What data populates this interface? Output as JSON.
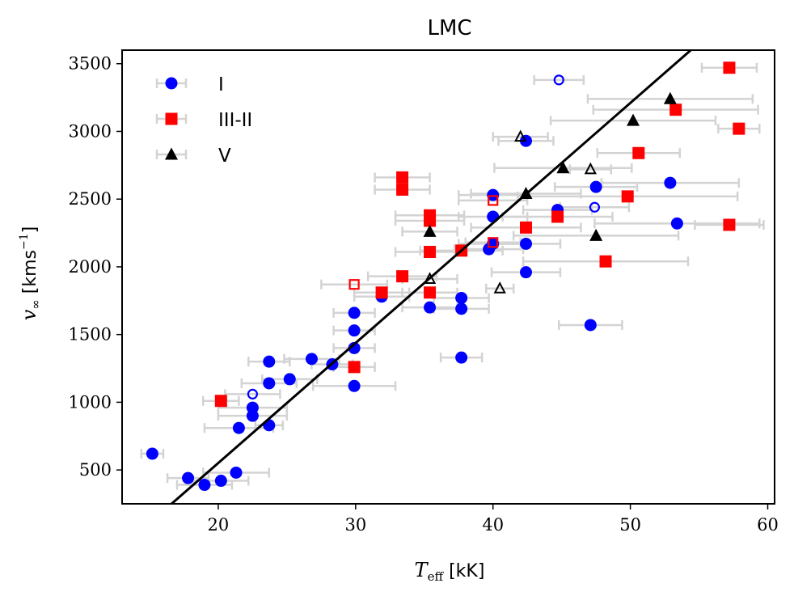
{
  "chart_data": {
    "type": "scatter",
    "title": "LMC",
    "xlabel_symbol": "T",
    "xlabel_sub": "eff",
    "xlabel_unit": " [kK]",
    "ylabel_symbol": "v",
    "ylabel_sub": "∞",
    "ylabel_unit_prefix": " [kms",
    "ylabel_unit_sup": "−1",
    "ylabel_unit_suffix": "]",
    "xlim": [
      13,
      60.5
    ],
    "ylim": [
      250,
      3600
    ],
    "xticks": [
      20,
      30,
      40,
      50,
      60
    ],
    "yticks": [
      500,
      1000,
      1500,
      2000,
      2500,
      3000,
      3500
    ],
    "grid": false,
    "legend_position": "top-left",
    "fit_line": {
      "x": [
        16.6,
        54.4
      ],
      "y": [
        250,
        3600
      ],
      "color": "#000000"
    },
    "series": [
      {
        "name": "I",
        "marker": "circle",
        "color": "#0000ff",
        "points": [
          {
            "x": 15.2,
            "y": 620,
            "xerr": 0.8
          },
          {
            "x": 17.8,
            "y": 440,
            "xerr": 1.5
          },
          {
            "x": 19.0,
            "y": 390,
            "xerr": 2.0
          },
          {
            "x": 20.2,
            "y": 420,
            "xerr": 2.0
          },
          {
            "x": 21.3,
            "y": 480,
            "xerr": 2.4
          },
          {
            "x": 21.5,
            "y": 810,
            "xerr": 2.5
          },
          {
            "x": 22.5,
            "y": 960,
            "xerr": 2.5
          },
          {
            "x": 22.5,
            "y": 900,
            "xerr": 2.5
          },
          {
            "x": 23.7,
            "y": 830,
            "xerr": 1.0
          },
          {
            "x": 23.7,
            "y": 1140,
            "xerr": 2.0
          },
          {
            "x": 23.7,
            "y": 1300,
            "xerr": 1.5
          },
          {
            "x": 25.2,
            "y": 1170,
            "xerr": 2.0
          },
          {
            "x": 26.8,
            "y": 1320,
            "xerr": 2.0
          },
          {
            "x": 28.3,
            "y": 1280,
            "xerr": 1.5
          },
          {
            "x": 29.9,
            "y": 1120,
            "xerr": 3.0
          },
          {
            "x": 29.9,
            "y": 1400,
            "xerr": 1.5
          },
          {
            "x": 29.9,
            "y": 1530,
            "xerr": 1.5
          },
          {
            "x": 29.9,
            "y": 1660,
            "xerr": 1.5
          },
          {
            "x": 31.9,
            "y": 1780,
            "xerr": 2.0
          },
          {
            "x": 35.4,
            "y": 1700,
            "xerr": 2.0
          },
          {
            "x": 37.7,
            "y": 1330,
            "xerr": 1.5
          },
          {
            "x": 37.7,
            "y": 1690,
            "xerr": 2.0
          },
          {
            "x": 37.7,
            "y": 1770,
            "xerr": 2.0
          },
          {
            "x": 39.7,
            "y": 2130,
            "xerr": 2.5
          },
          {
            "x": 40.0,
            "y": 2170,
            "xerr": 2.5
          },
          {
            "x": 40.0,
            "y": 2370,
            "xerr": 2.5
          },
          {
            "x": 40.0,
            "y": 2530,
            "xerr": 2.5
          },
          {
            "x": 42.4,
            "y": 1960,
            "xerr": 2.5
          },
          {
            "x": 42.4,
            "y": 2170,
            "xerr": 2.5
          },
          {
            "x": 42.4,
            "y": 2930,
            "xerr": 2.0
          },
          {
            "x": 44.7,
            "y": 2420,
            "xerr": 2.5
          },
          {
            "x": 47.1,
            "y": 1570,
            "xerr": 2.3
          },
          {
            "x": 47.5,
            "y": 2590,
            "xerr": 3.0
          },
          {
            "x": 52.9,
            "y": 2620,
            "xerr": 5.0
          },
          {
            "x": 53.4,
            "y": 2320,
            "xerr": 6.0
          }
        ]
      },
      {
        "name": "I",
        "marker": "circle-open",
        "color": "#0000ff",
        "legend": false,
        "points": [
          {
            "x": 22.5,
            "y": 1060,
            "xerr": 2.0
          },
          {
            "x": 44.8,
            "y": 3380,
            "xerr": 1.8
          },
          {
            "x": 47.4,
            "y": 2440,
            "xerr": 2.5
          }
        ]
      },
      {
        "name": "III-II",
        "marker": "square",
        "color": "#ff0000",
        "points": [
          {
            "x": 20.2,
            "y": 1010,
            "xerr": 1.3
          },
          {
            "x": 29.9,
            "y": 1260,
            "xerr": 1.5
          },
          {
            "x": 31.9,
            "y": 1810,
            "xerr": 2.0
          },
          {
            "x": 33.4,
            "y": 1930,
            "xerr": 2.5
          },
          {
            "x": 33.4,
            "y": 2570,
            "xerr": 2.0
          },
          {
            "x": 33.4,
            "y": 2660,
            "xerr": 2.0
          },
          {
            "x": 35.4,
            "y": 1810,
            "xerr": 2.0
          },
          {
            "x": 35.4,
            "y": 2110,
            "xerr": 2.5
          },
          {
            "x": 35.4,
            "y": 2340,
            "xerr": 2.5
          },
          {
            "x": 35.4,
            "y": 2380,
            "xerr": 2.5
          },
          {
            "x": 37.7,
            "y": 2120,
            "xerr": 3.0
          },
          {
            "x": 42.4,
            "y": 2290,
            "xerr": 4.0
          },
          {
            "x": 44.7,
            "y": 2370,
            "xerr": 4.0
          },
          {
            "x": 48.2,
            "y": 2040,
            "xerr": 6.0
          },
          {
            "x": 49.8,
            "y": 2520,
            "xerr": 8.0
          },
          {
            "x": 50.6,
            "y": 2840,
            "xerr": 3.0
          },
          {
            "x": 53.3,
            "y": 3160,
            "xerr": 6.0
          },
          {
            "x": 57.2,
            "y": 3470,
            "xerr": 2.0
          },
          {
            "x": 57.2,
            "y": 2310,
            "xerr": 2.5
          },
          {
            "x": 57.9,
            "y": 3020,
            "xerr": 1.5
          }
        ]
      },
      {
        "name": "III-II",
        "marker": "square-open",
        "color": "#ff0000",
        "legend": false,
        "points": [
          {
            "x": 29.9,
            "y": 1870,
            "xerr": 2.4
          },
          {
            "x": 40.0,
            "y": 2180,
            "xerr": 2.0
          },
          {
            "x": 40.0,
            "y": 2490,
            "xerr": 2.5
          }
        ]
      },
      {
        "name": "V",
        "marker": "triangle",
        "color": "#000000",
        "points": [
          {
            "x": 35.4,
            "y": 2260,
            "xerr": 2.0
          },
          {
            "x": 42.4,
            "y": 2540,
            "xerr": 4.0
          },
          {
            "x": 45.1,
            "y": 2730,
            "xerr": 5.0
          },
          {
            "x": 47.5,
            "y": 2230,
            "xerr": 6.0
          },
          {
            "x": 50.2,
            "y": 3080,
            "xerr": 6.0
          },
          {
            "x": 52.9,
            "y": 3240,
            "xerr": 6.0
          }
        ]
      },
      {
        "name": "V",
        "marker": "triangle-open",
        "color": "#000000",
        "legend": false,
        "points": [
          {
            "x": 35.4,
            "y": 1910,
            "xerr": 2.0
          },
          {
            "x": 40.5,
            "y": 1840,
            "xerr": 1.0
          },
          {
            "x": 42.0,
            "y": 2960,
            "xerr": 2.0
          },
          {
            "x": 47.1,
            "y": 2720,
            "xerr": 1.5
          }
        ]
      }
    ]
  }
}
